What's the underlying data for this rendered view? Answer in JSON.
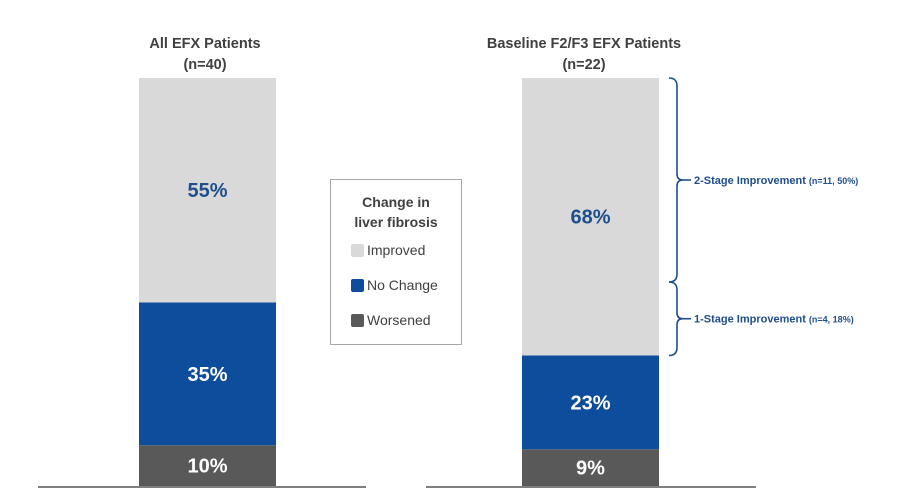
{
  "chart_data": [
    {
      "type": "bar",
      "stacked": true,
      "title": "All EFX Patients",
      "subtitle": "(n=40)",
      "categories": [
        "All EFX Patients"
      ],
      "series": [
        {
          "name": "Worsened",
          "values": [
            10
          ],
          "label": "10%"
        },
        {
          "name": "No Change",
          "values": [
            35
          ],
          "label": "35%"
        },
        {
          "name": "Improved",
          "values": [
            55
          ],
          "label": "55%"
        }
      ],
      "ylim": [
        0,
        100
      ]
    },
    {
      "type": "bar",
      "stacked": true,
      "title": "Baseline F2/F3 EFX Patients",
      "subtitle": "(n=22)",
      "categories": [
        "Baseline F2/F3 EFX Patients"
      ],
      "series": [
        {
          "name": "Worsened",
          "values": [
            9
          ],
          "label": "9%"
        },
        {
          "name": "No Change",
          "values": [
            23
          ],
          "label": "23%"
        },
        {
          "name": "Improved",
          "values": [
            68
          ],
          "label": "68%"
        }
      ],
      "ylim": [
        0,
        100
      ],
      "annotations": [
        {
          "text": "2-Stage Improvement",
          "detail": "(n=11, 50%)",
          "value": 50
        },
        {
          "text": "1-Stage Improvement",
          "detail": "(n=4, 18%)",
          "value": 18
        }
      ]
    }
  ],
  "legend": {
    "title_line1": "Change in",
    "title_line2": "liver fibrosis",
    "items": [
      {
        "label": "Improved",
        "color": "#d9d9d9"
      },
      {
        "label": "No Change",
        "color": "#0d4d9b"
      },
      {
        "label": "Worsened",
        "color": "#595959"
      }
    ]
  },
  "colors": {
    "Improved": "#d9d9d9",
    "No Change": "#0d4d9b",
    "Worsened": "#595959",
    "label_on_light": "#1f4e8c",
    "label_on_dark": "#ffffff",
    "bracket": "#1f4e8c"
  }
}
